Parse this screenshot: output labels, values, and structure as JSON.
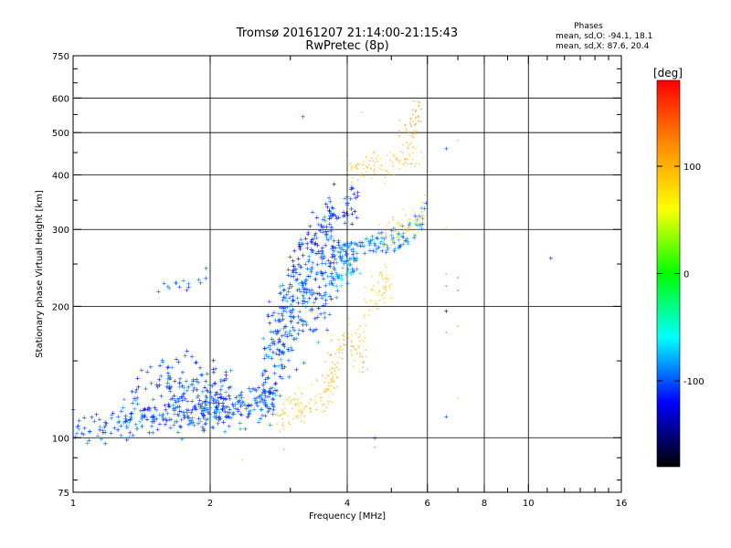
{
  "colors": {
    "background": "#ffffff",
    "grid": "#000000",
    "colorbar_gradient": [
      "#ff0000",
      "#ff8c00",
      "#ffff00",
      "#00ff00",
      "#00ffff",
      "#0000ff",
      "#000000"
    ]
  },
  "chart_data": {
    "type": "scatter",
    "title": "Tromsø 20161207 21:14:00-21:15:43",
    "subtitle": "RwPretec (8p)",
    "stats_title": "Phases",
    "stats_o": "mean, sd,O: -94.1, 18.1",
    "stats_x": "mean, sd,X:  87.6, 20.4",
    "xlabel": "Frequency [MHz]",
    "ylabel": "Stationary phase Virtual Height [km]",
    "x_scale": "log",
    "y_scale": "log",
    "xlim": [
      1,
      16
    ],
    "ylim": [
      75,
      750
    ],
    "x_ticks": [
      {
        "value": 1,
        "label": "1"
      },
      {
        "value": 2,
        "label": "2"
      },
      {
        "value": 4,
        "label": "4"
      },
      {
        "value": 6,
        "label": "6"
      },
      {
        "value": 8,
        "label": "8"
      },
      {
        "value": 10,
        "label": "10"
      },
      {
        "value": 16,
        "label": "16"
      }
    ],
    "x_minor_ticks": [
      3,
      5,
      7,
      9,
      11,
      12,
      13,
      14,
      15
    ],
    "x_grid": [
      2,
      4,
      6,
      8,
      10
    ],
    "y_ticks": [
      {
        "value": 75,
        "label": "75"
      },
      {
        "value": 100,
        "label": "100"
      },
      {
        "value": 200,
        "label": "200"
      },
      {
        "value": 300,
        "label": "300"
      },
      {
        "value": 400,
        "label": "400"
      },
      {
        "value": 500,
        "label": "500"
      },
      {
        "value": 600,
        "label": "600"
      },
      {
        "value": 750,
        "label": "750"
      }
    ],
    "y_minor_ticks": [
      80,
      90,
      150,
      250,
      350,
      450,
      550,
      650,
      700
    ],
    "y_grid": [
      100,
      200,
      300,
      400,
      500,
      600
    ],
    "grid": true,
    "colorbar": {
      "label": "[deg]",
      "range": [
        -180,
        180
      ],
      "ticks": [
        {
          "value": 100,
          "label": "100"
        },
        {
          "value": 0,
          "label": "0"
        },
        {
          "value": -100,
          "label": "-100"
        }
      ]
    },
    "traces": [
      {
        "name": "o-lower",
        "phase": -100,
        "spread_y": 0.045,
        "count": 340,
        "path": [
          [
            1.0,
            108
          ],
          [
            1.2,
            106
          ],
          [
            1.4,
            110
          ],
          [
            1.6,
            112
          ],
          [
            1.8,
            112
          ],
          [
            2.0,
            114
          ],
          [
            2.2,
            116
          ],
          [
            2.5,
            120
          ],
          [
            2.8,
            125
          ]
        ]
      },
      {
        "name": "o-hump",
        "phase": -105,
        "spread_y": 0.07,
        "count": 150,
        "path": [
          [
            1.3,
            125
          ],
          [
            1.6,
            130
          ],
          [
            1.8,
            135
          ],
          [
            2.0,
            130
          ],
          [
            2.2,
            125
          ]
        ]
      },
      {
        "name": "o-rise",
        "phase": -100,
        "spread_y": 0.14,
        "count": 330,
        "path": [
          [
            2.6,
            140
          ],
          [
            2.8,
            165
          ],
          [
            3.0,
            195
          ],
          [
            3.2,
            210
          ],
          [
            3.4,
            225
          ],
          [
            3.6,
            245
          ],
          [
            3.8,
            265
          ]
        ]
      },
      {
        "name": "o-upper",
        "phase": -115,
        "spread_y": 0.06,
        "count": 90,
        "path": [
          [
            3.0,
            240
          ],
          [
            3.3,
            280
          ],
          [
            3.6,
            320
          ],
          [
            3.9,
            340
          ],
          [
            4.2,
            345
          ]
        ]
      },
      {
        "name": "o-cusp",
        "phase": -90,
        "spread_y": 0.035,
        "count": 120,
        "path": [
          [
            3.8,
            265
          ],
          [
            4.0,
            270
          ],
          [
            4.4,
            275
          ],
          [
            4.8,
            280
          ],
          [
            5.2,
            285
          ],
          [
            5.6,
            300
          ],
          [
            5.9,
            320
          ]
        ]
      },
      {
        "name": "o-near-foE",
        "phase": -80,
        "spread_y": 0.04,
        "count": 40,
        "path": [
          [
            3.7,
            230
          ],
          [
            4.0,
            245
          ],
          [
            4.2,
            255
          ]
        ]
      },
      {
        "name": "o-isolated",
        "phase": -100,
        "spread_y": 0.02,
        "count": 15,
        "path": [
          [
            1.55,
            218
          ],
          [
            1.8,
            226
          ],
          [
            2.05,
            234
          ]
        ]
      },
      {
        "name": "x-lower",
        "phase": 95,
        "spread_y": 0.05,
        "count": 130,
        "path": [
          [
            2.8,
            110
          ],
          [
            3.0,
            113
          ],
          [
            3.3,
            118
          ],
          [
            3.6,
            125
          ],
          [
            3.8,
            135
          ]
        ]
      },
      {
        "name": "x-rise",
        "phase": 100,
        "spread_y": 0.06,
        "count": 90,
        "path": [
          [
            3.6,
            140
          ],
          [
            3.8,
            150
          ],
          [
            4.0,
            160
          ],
          [
            4.2,
            165
          ],
          [
            4.4,
            155
          ]
        ]
      },
      {
        "name": "x-mid",
        "phase": 85,
        "spread_y": 0.05,
        "count": 60,
        "path": [
          [
            4.4,
            200
          ],
          [
            4.6,
            210
          ],
          [
            4.8,
            220
          ],
          [
            5.0,
            225
          ]
        ]
      },
      {
        "name": "x-cusp",
        "phase": 90,
        "spread_y": 0.035,
        "count": 80,
        "path": [
          [
            4.6,
            280
          ],
          [
            5.0,
            290
          ],
          [
            5.3,
            300
          ],
          [
            5.7,
            310
          ],
          [
            5.9,
            330
          ]
        ]
      },
      {
        "name": "x-high",
        "phase": 95,
        "spread_y": 0.04,
        "count": 100,
        "path": [
          [
            4.0,
            400
          ],
          [
            4.3,
            410
          ],
          [
            4.6,
            415
          ],
          [
            5.0,
            420
          ],
          [
            5.4,
            430
          ],
          [
            5.8,
            440
          ]
        ]
      },
      {
        "name": "x-top",
        "phase": 110,
        "spread_y": 0.05,
        "count": 50,
        "path": [
          [
            5.2,
            470
          ],
          [
            5.6,
            520
          ],
          [
            5.8,
            560
          ]
        ]
      }
    ],
    "isolated_points": [
      {
        "x": 11.2,
        "y": 258,
        "phase": -110
      },
      {
        "x": 6.6,
        "y": 460,
        "phase": -100
      },
      {
        "x": 7.0,
        "y": 475,
        "phase": 20
      },
      {
        "x": 6.6,
        "y": 300,
        "phase": 40
      },
      {
        "x": 7.0,
        "y": 290,
        "phase": 60
      },
      {
        "x": 6.6,
        "y": 235,
        "phase": 130
      },
      {
        "x": 7.0,
        "y": 230,
        "phase": 150
      },
      {
        "x": 6.6,
        "y": 220,
        "phase": 170
      },
      {
        "x": 7.0,
        "y": 215,
        "phase": 160
      },
      {
        "x": 6.6,
        "y": 195,
        "phase": -150
      },
      {
        "x": 6.6,
        "y": 172,
        "phase": 140
      },
      {
        "x": 7.0,
        "y": 178,
        "phase": 120
      },
      {
        "x": 6.6,
        "y": 112,
        "phase": -100
      },
      {
        "x": 7.0,
        "y": 122,
        "phase": 90
      },
      {
        "x": 4.6,
        "y": 100,
        "phase": -100
      },
      {
        "x": 4.6,
        "y": 94,
        "phase": 150
      },
      {
        "x": 2.9,
        "y": 93,
        "phase": 120
      },
      {
        "x": 2.35,
        "y": 88,
        "phase": 100
      },
      {
        "x": 4.0,
        "y": 78,
        "phase": 130
      },
      {
        "x": 3.2,
        "y": 545,
        "phase": -100
      },
      {
        "x": 4.3,
        "y": 550,
        "phase": 110
      }
    ]
  }
}
